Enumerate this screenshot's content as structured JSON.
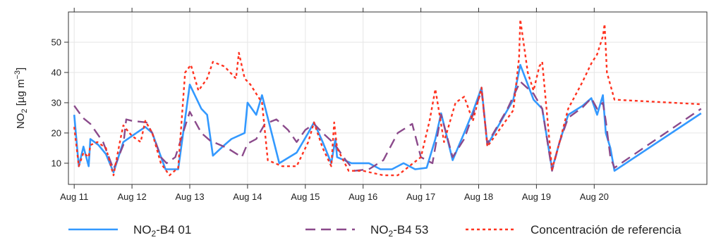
{
  "chart_data": {
    "type": "line",
    "title": "",
    "xlabel": "",
    "ylabel": {
      "base": "NO",
      "sub": "2",
      "unit_open": " [µg m",
      "sup": "−3",
      "unit_close": "]"
    },
    "x_ticks": [
      "Aug 11",
      "Aug 12",
      "Aug 13",
      "Aug 14",
      "Aug 15",
      "Aug 16",
      "Aug 17",
      "Aug 18",
      "Aug 19",
      "Aug 20"
    ],
    "y_ticks": [
      10,
      20,
      30,
      40,
      50
    ],
    "xlim": [
      -0.1,
      10.95
    ],
    "ylim": [
      3,
      60
    ],
    "grid": true,
    "legend_position": "bottom",
    "series": [
      {
        "legend": {
          "base": "NO",
          "sub": "2",
          "rest": "-B4 01"
        },
        "color": "#3399ff",
        "dash": "solid",
        "points": [
          [
            0.0,
            26
          ],
          [
            0.08,
            9
          ],
          [
            0.16,
            15.5
          ],
          [
            0.25,
            9
          ],
          [
            0.28,
            18
          ],
          [
            0.42,
            16
          ],
          [
            0.55,
            13
          ],
          [
            0.68,
            7
          ],
          [
            0.85,
            17
          ],
          [
            1.0,
            19
          ],
          [
            1.23,
            22
          ],
          [
            1.35,
            20
          ],
          [
            1.58,
            8
          ],
          [
            1.8,
            8
          ],
          [
            2.0,
            36
          ],
          [
            2.2,
            28
          ],
          [
            2.3,
            26
          ],
          [
            2.4,
            12.5
          ],
          [
            2.6,
            16
          ],
          [
            2.72,
            18
          ],
          [
            2.95,
            20
          ],
          [
            3.0,
            30
          ],
          [
            3.15,
            26
          ],
          [
            3.25,
            32.5
          ],
          [
            3.55,
            10
          ],
          [
            3.85,
            13.5
          ],
          [
            4.05,
            20
          ],
          [
            4.15,
            23.5
          ],
          [
            4.3,
            17
          ],
          [
            4.45,
            10
          ],
          [
            4.52,
            18
          ],
          [
            4.55,
            12
          ],
          [
            4.8,
            10
          ],
          [
            5.1,
            10
          ],
          [
            5.3,
            8
          ],
          [
            5.5,
            8
          ],
          [
            5.7,
            10
          ],
          [
            5.9,
            8
          ],
          [
            6.1,
            8.5
          ],
          [
            6.25,
            18
          ],
          [
            6.35,
            26.5
          ],
          [
            6.55,
            11
          ],
          [
            6.75,
            20
          ],
          [
            6.9,
            27
          ],
          [
            7.05,
            35
          ],
          [
            7.15,
            16
          ],
          [
            7.6,
            31
          ],
          [
            7.72,
            42.5
          ],
          [
            7.95,
            31
          ],
          [
            8.1,
            28
          ],
          [
            8.27,
            8
          ],
          [
            8.4,
            17
          ],
          [
            8.55,
            26
          ],
          [
            8.8,
            29
          ],
          [
            8.95,
            31.5
          ],
          [
            9.05,
            26
          ],
          [
            9.15,
            32.5
          ],
          [
            9.2,
            20
          ],
          [
            9.28,
            15
          ],
          [
            9.35,
            7.5
          ],
          [
            10.85,
            26.5
          ]
        ]
      },
      {
        "legend": {
          "base": "NO",
          "sub": "2",
          "rest": "-B4 53"
        },
        "color": "#8b4a8b",
        "dash": "14,8",
        "points": [
          [
            0.0,
            29
          ],
          [
            0.15,
            25
          ],
          [
            0.28,
            23
          ],
          [
            0.5,
            17
          ],
          [
            0.68,
            8
          ],
          [
            0.85,
            16
          ],
          [
            0.9,
            24.5
          ],
          [
            1.0,
            24
          ],
          [
            1.25,
            23.5
          ],
          [
            1.35,
            20
          ],
          [
            1.5,
            12
          ],
          [
            1.6,
            10
          ],
          [
            1.75,
            12
          ],
          [
            2.0,
            27
          ],
          [
            2.2,
            20
          ],
          [
            2.35,
            17.5
          ],
          [
            2.65,
            15
          ],
          [
            2.9,
            12
          ],
          [
            3.0,
            16.5
          ],
          [
            3.15,
            18
          ],
          [
            3.3,
            23
          ],
          [
            3.5,
            24.5
          ],
          [
            3.7,
            21
          ],
          [
            3.85,
            17
          ],
          [
            4.0,
            21
          ],
          [
            4.15,
            23
          ],
          [
            4.3,
            20
          ],
          [
            4.5,
            16.5
          ],
          [
            4.7,
            11
          ],
          [
            4.85,
            7.5
          ],
          [
            5.1,
            8
          ],
          [
            5.35,
            11
          ],
          [
            5.6,
            20
          ],
          [
            5.85,
            23
          ],
          [
            6.0,
            12
          ],
          [
            6.2,
            10
          ],
          [
            6.35,
            26
          ],
          [
            6.55,
            12
          ],
          [
            6.75,
            18
          ],
          [
            6.9,
            26
          ],
          [
            7.05,
            34
          ],
          [
            7.15,
            16.5
          ],
          [
            7.5,
            28
          ],
          [
            7.72,
            37
          ],
          [
            7.95,
            33
          ],
          [
            8.1,
            28
          ],
          [
            8.27,
            7.5
          ],
          [
            8.4,
            17
          ],
          [
            8.55,
            25
          ],
          [
            8.8,
            28.5
          ],
          [
            8.95,
            31.5
          ],
          [
            9.05,
            28
          ],
          [
            9.15,
            30
          ],
          [
            9.2,
            24
          ],
          [
            9.28,
            12
          ],
          [
            9.35,
            8.5
          ],
          [
            10.85,
            28
          ]
        ]
      },
      {
        "legend": {
          "base": "Concentración de referencia",
          "sub": "",
          "rest": ""
        },
        "color": "#ff3320",
        "dash": "4,4",
        "points": [
          [
            0.0,
            22
          ],
          [
            0.08,
            9
          ],
          [
            0.16,
            13.5
          ],
          [
            0.25,
            12
          ],
          [
            0.28,
            16
          ],
          [
            0.4,
            17
          ],
          [
            0.55,
            15
          ],
          [
            0.68,
            6
          ],
          [
            0.8,
            18
          ],
          [
            0.85,
            22.5
          ],
          [
            1.0,
            19
          ],
          [
            1.15,
            17
          ],
          [
            1.23,
            24
          ],
          [
            1.35,
            20
          ],
          [
            1.5,
            10
          ],
          [
            1.65,
            6
          ],
          [
            1.8,
            8.5
          ],
          [
            1.92,
            40
          ],
          [
            2.02,
            42.5
          ],
          [
            2.15,
            34
          ],
          [
            2.3,
            38
          ],
          [
            2.4,
            43.5
          ],
          [
            2.6,
            42
          ],
          [
            2.8,
            38
          ],
          [
            2.85,
            46.5
          ],
          [
            2.95,
            38
          ],
          [
            3.05,
            36
          ],
          [
            3.25,
            30
          ],
          [
            3.35,
            11
          ],
          [
            3.6,
            9
          ],
          [
            3.85,
            9
          ],
          [
            4.05,
            17
          ],
          [
            4.15,
            23.5
          ],
          [
            4.3,
            15
          ],
          [
            4.45,
            9
          ],
          [
            4.5,
            23.5
          ],
          [
            4.55,
            15
          ],
          [
            4.75,
            7.5
          ],
          [
            5.0,
            7.5
          ],
          [
            5.35,
            6
          ],
          [
            5.6,
            6
          ],
          [
            5.8,
            9
          ],
          [
            6.0,
            12
          ],
          [
            6.15,
            24
          ],
          [
            6.25,
            34.5
          ],
          [
            6.4,
            17
          ],
          [
            6.6,
            30
          ],
          [
            6.75,
            32
          ],
          [
            6.9,
            24
          ],
          [
            7.05,
            35
          ],
          [
            7.15,
            15.5
          ],
          [
            7.6,
            27.5
          ],
          [
            7.7,
            45
          ],
          [
            7.72,
            57.5
          ],
          [
            7.85,
            40
          ],
          [
            7.95,
            34
          ],
          [
            8.05,
            42
          ],
          [
            8.1,
            43.5
          ],
          [
            8.27,
            8
          ],
          [
            8.4,
            17
          ],
          [
            8.55,
            28
          ],
          [
            8.8,
            37
          ],
          [
            8.95,
            43
          ],
          [
            9.05,
            46
          ],
          [
            9.15,
            52
          ],
          [
            9.18,
            56
          ],
          [
            9.22,
            40
          ],
          [
            9.35,
            31
          ],
          [
            10.85,
            29.5
          ]
        ]
      }
    ]
  }
}
